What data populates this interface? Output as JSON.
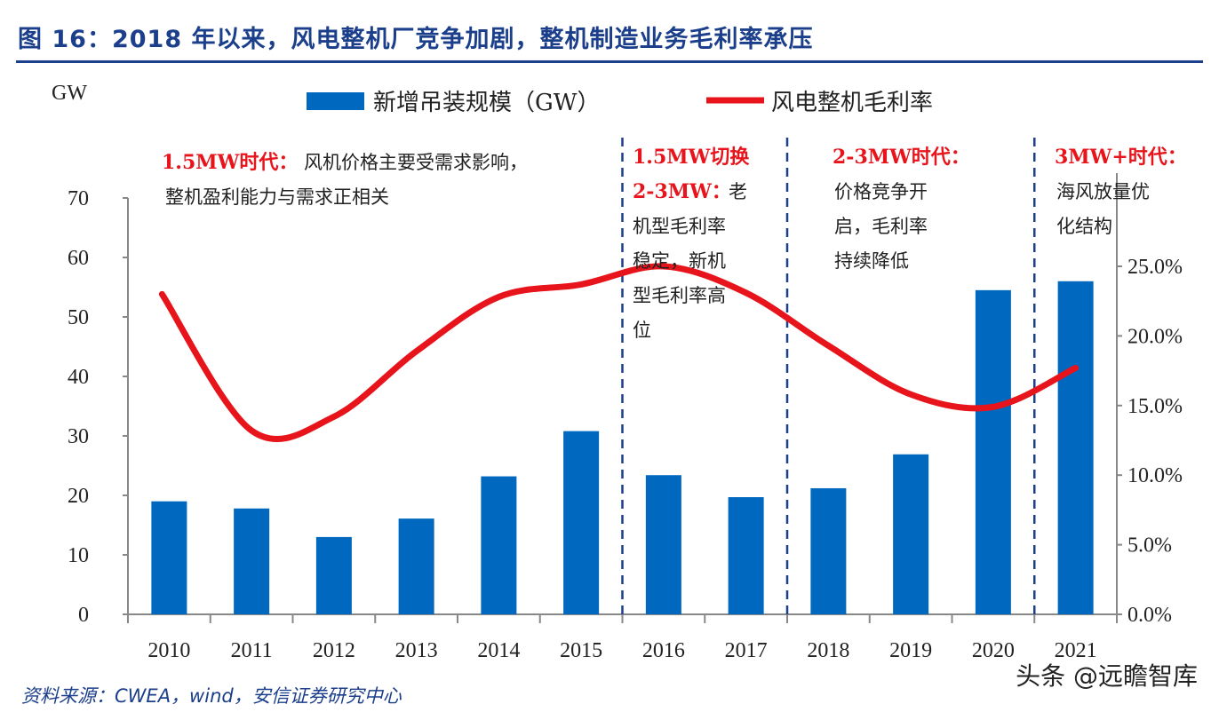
{
  "title": "图 16：2018 年以来，风电整机厂竞争加剧，整机制造业务毛利率承压",
  "source": "资料来源：CWEA，wind，安信证券研究中心",
  "watermark": "头条 @远瞻智库",
  "colors": {
    "bar": "#0068be",
    "line": "#e8141b",
    "title": "#1b3f8b",
    "divider": "#1b3f8b"
  },
  "chart_data": {
    "type": "bar+line",
    "ylabel_left": "GW",
    "categories": [
      "2010",
      "2011",
      "2012",
      "2013",
      "2014",
      "2015",
      "2016",
      "2017",
      "2018",
      "2019",
      "2020",
      "2021"
    ],
    "ylim_left": [
      0,
      70
    ],
    "yticks_left": [
      "0",
      "10",
      "20",
      "30",
      "40",
      "50",
      "60",
      "70"
    ],
    "ylim_right": [
      0,
      25
    ],
    "yticks_right": [
      "0.0%",
      "5.0%",
      "10.0%",
      "15.0%",
      "20.0%",
      "25.0%"
    ],
    "legend_position": "top",
    "grid": false,
    "series": [
      {
        "name": "新增吊装规模（GW）",
        "type": "bar",
        "axis": "left",
        "values": [
          19.0,
          17.8,
          13.0,
          16.1,
          23.2,
          30.8,
          23.4,
          19.7,
          21.2,
          26.9,
          54.5,
          56.0
        ]
      },
      {
        "name": "风电整机毛利率",
        "type": "line",
        "axis": "right",
        "smooth": true,
        "values": [
          23.0,
          13.2,
          14.2,
          18.9,
          22.8,
          23.7,
          25.0,
          23.1,
          19.3,
          15.8,
          14.9,
          17.7
        ]
      }
    ],
    "annotations": [
      {
        "heading": "1.5MW时代：",
        "lines": [
          "风机价格主要受需求影响，",
          "整机盈利能力与需求正相关"
        ]
      },
      {
        "heading": "1.5MW切换",
        "lines": [
          "2-3MW：老",
          "机型毛利率",
          "稳定，新机",
          "型毛利率高",
          "位"
        ]
      },
      {
        "heading": "2-3MW时代：",
        "lines": [
          "价格竞争开",
          "启，毛利率",
          "持续降低"
        ]
      },
      {
        "heading": "3MW+时代：",
        "lines": [
          "海风放量优",
          "化结构"
        ]
      }
    ]
  }
}
